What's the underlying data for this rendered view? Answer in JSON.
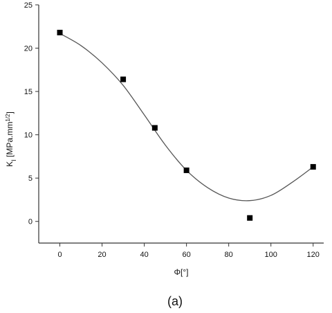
{
  "chart_data": {
    "type": "scatter",
    "title": "",
    "caption": "(a)",
    "xlabel": "Φ[°]",
    "ylabel": {
      "main": "K",
      "sub": "I",
      "unit_prefix": " [MPa.mm",
      "unit_sup": "1/2",
      "unit_suffix": "]"
    },
    "xlim": [
      -10,
      125
    ],
    "ylim": [
      -2.5,
      25
    ],
    "xticks": [
      0,
      20,
      40,
      60,
      80,
      100,
      120
    ],
    "yticks": [
      0,
      5,
      10,
      15,
      20,
      25
    ],
    "grid": false,
    "series": [
      {
        "marker": "square",
        "points": [
          {
            "x": 0,
            "y": 21.8
          },
          {
            "x": 30,
            "y": 16.4
          },
          {
            "x": 45,
            "y": 10.8
          },
          {
            "x": 60,
            "y": 5.9
          },
          {
            "x": 90,
            "y": 0.4
          },
          {
            "x": 120,
            "y": 6.3
          }
        ]
      }
    ],
    "fit_curve": {
      "style": "smooth-line",
      "points": [
        {
          "x": 0,
          "y": 21.7
        },
        {
          "x": 10,
          "y": 20.3
        },
        {
          "x": 20,
          "y": 18.3
        },
        {
          "x": 30,
          "y": 15.7
        },
        {
          "x": 40,
          "y": 12.3
        },
        {
          "x": 50,
          "y": 8.8
        },
        {
          "x": 60,
          "y": 5.9
        },
        {
          "x": 70,
          "y": 3.9
        },
        {
          "x": 80,
          "y": 2.7
        },
        {
          "x": 90,
          "y": 2.4
        },
        {
          "x": 100,
          "y": 3.0
        },
        {
          "x": 110,
          "y": 4.5
        },
        {
          "x": 120,
          "y": 6.3
        }
      ]
    },
    "colors": {
      "axis": "#333333",
      "marker": "#000000",
      "curve": "#555555"
    }
  }
}
